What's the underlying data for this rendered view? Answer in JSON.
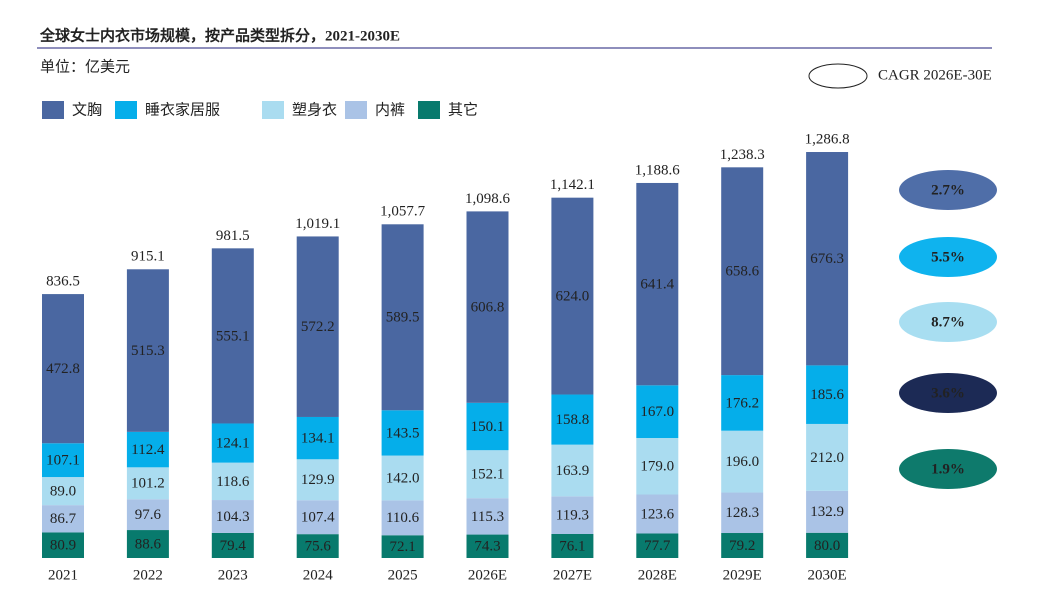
{
  "chart_data": {
    "type": "stacked_bar",
    "title": "全球女士内衣市场规模，按产品类型拆分，2021-2030E",
    "unit": "单位：亿美元",
    "categories": [
      "2021",
      "2022",
      "2023",
      "2024",
      "2025",
      "2026E",
      "2027E",
      "2028E",
      "2029E",
      "2030E"
    ],
    "series": [
      {
        "name": "文胸",
        "color": "#4a67a1",
        "label_color": "#ffffff",
        "values": [
          472.8,
          515.3,
          555.1,
          572.2,
          589.5,
          606.8,
          624.0,
          641.4,
          658.6,
          676.3
        ],
        "value_labels": [
          "472.8",
          "515.3",
          "555.1",
          "572.2",
          "589.5",
          "606.8",
          "624.0",
          "641.4",
          "658.6",
          "676.3"
        ]
      },
      {
        "name": "睡衣家居服",
        "color": "#05aeea",
        "label_color": "#ffffff",
        "values": [
          107.1,
          112.4,
          124.1,
          134.1,
          143.5,
          150.1,
          158.8,
          167.0,
          176.2,
          185.6
        ],
        "value_labels": [
          "107.1",
          "112.4",
          "124.1",
          "134.1",
          "143.5",
          "150.1",
          "158.8",
          "167.0",
          "176.2",
          "185.6"
        ]
      },
      {
        "name": "塑身衣",
        "color": "#aadcf0",
        "label_color": "#222222",
        "values": [
          89.0,
          101.2,
          118.6,
          129.9,
          142.0,
          152.1,
          163.9,
          179.0,
          196.0,
          212.0
        ],
        "value_labels": [
          "89.0",
          "101.2",
          "118.6",
          "129.9",
          "142.0",
          "152.1",
          "163.9",
          "179.0",
          "196.0",
          "212.0"
        ]
      },
      {
        "name": "内裤",
        "color": "#aac3e6",
        "label_color": "#222222",
        "values": [
          86.7,
          97.6,
          104.3,
          107.4,
          110.6,
          115.3,
          119.3,
          123.6,
          128.3,
          132.9
        ],
        "value_labels": [
          "86.7",
          "97.6",
          "104.3",
          "107.4",
          "110.6",
          "115.3",
          "119.3",
          "123.6",
          "128.3",
          "132.9"
        ]
      },
      {
        "name": "其它",
        "color": "#087a6d",
        "label_color": "#ffffff",
        "values": [
          80.9,
          88.6,
          79.4,
          75.6,
          72.1,
          74.3,
          76.1,
          77.7,
          79.2,
          80.0
        ],
        "value_labels": [
          "80.9",
          "88.6",
          "79.4",
          "75.6",
          "72.1",
          "74.3",
          "76.1",
          "77.7",
          "79.2",
          "80.0"
        ]
      }
    ],
    "totals": {
      "values": [
        836.5,
        915.1,
        981.5,
        1019.1,
        1057.7,
        1098.6,
        1142.1,
        1188.6,
        1238.3,
        1286.8
      ],
      "value_labels": [
        "836.5",
        "915.1",
        "981.5",
        "1,019.1",
        "1,057.7",
        "1,098.6",
        "1,142.1",
        "1,188.6",
        "1,238.3",
        "1,286.8"
      ]
    },
    "cagr": {
      "title": "CAGR 2026E-30E",
      "values": [
        2.7,
        5.5,
        8.7,
        3.6,
        1.9
      ],
      "value_labels": [
        "2.7%",
        "5.5%",
        "8.7%",
        "3.6%",
        "1.9%"
      ],
      "colors": [
        "#4f6ea8",
        "#0fb3ee",
        "#a8def1",
        "#1c2a55",
        "#0e7a6c"
      ]
    }
  }
}
